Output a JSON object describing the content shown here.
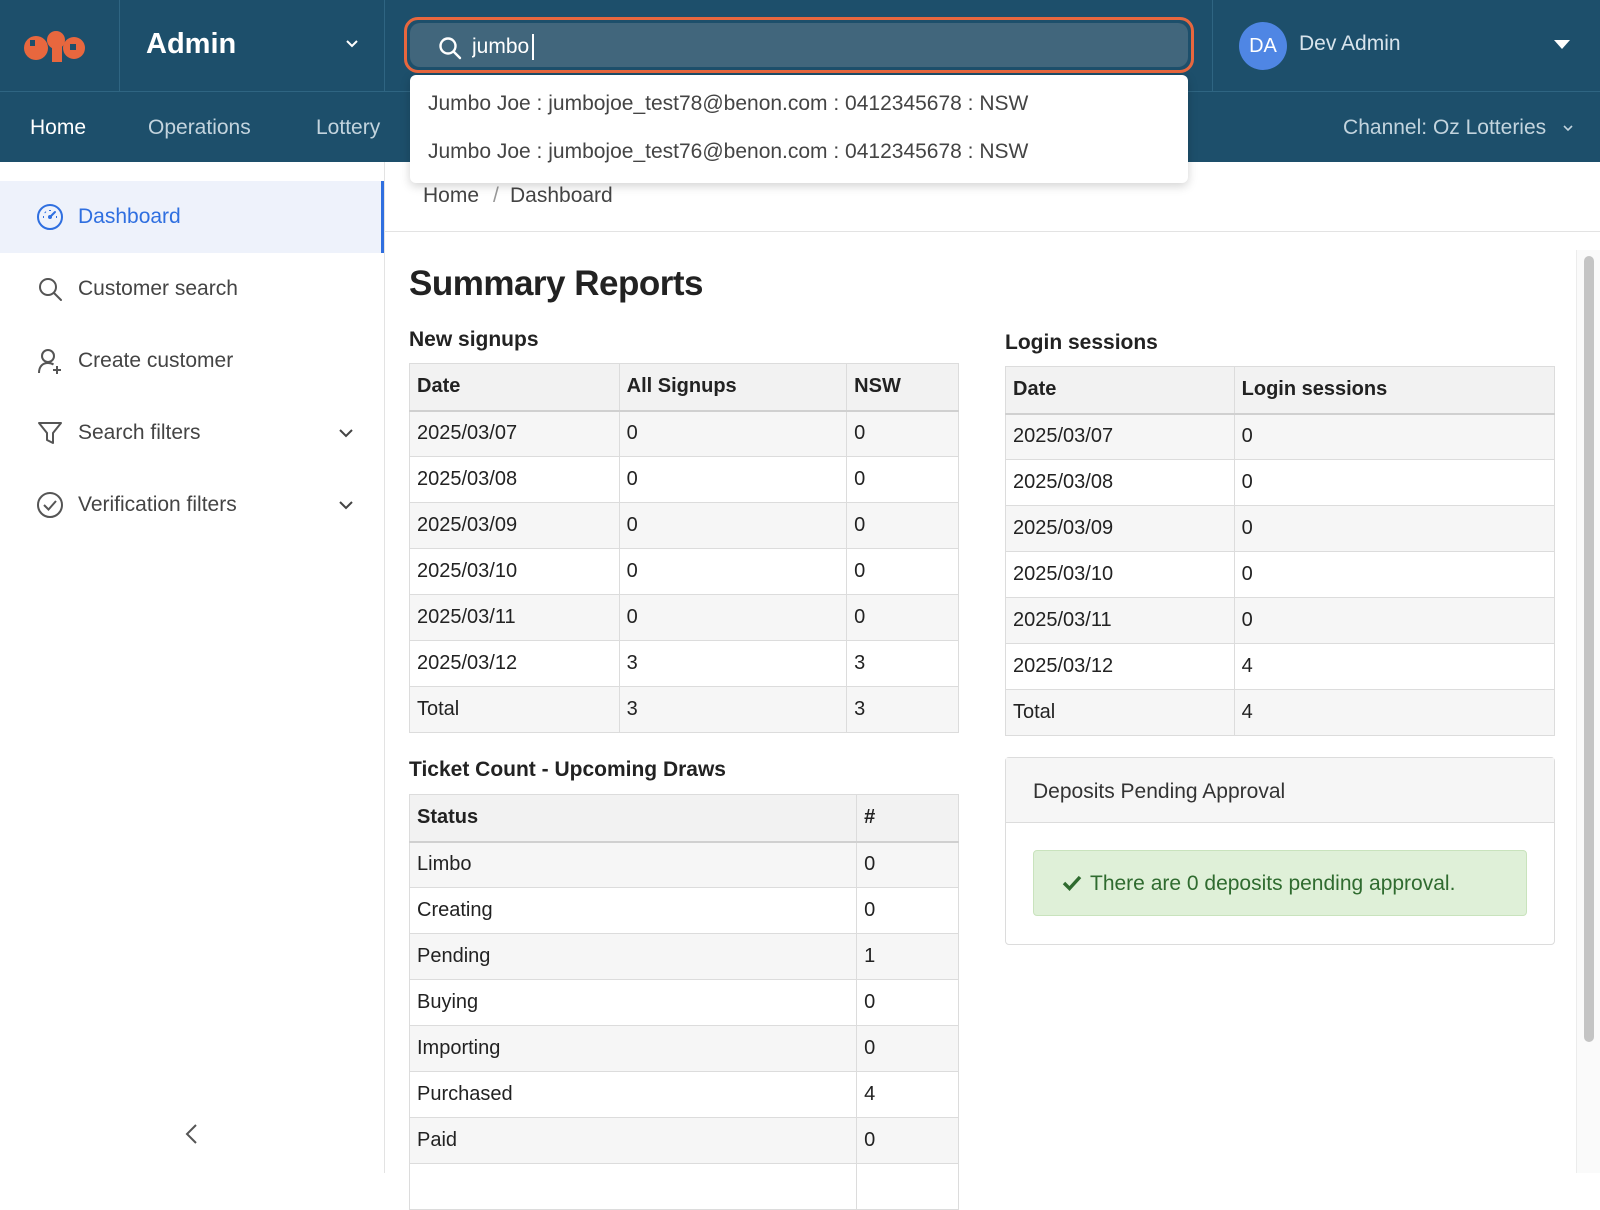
{
  "header": {
    "app_title": "Admin",
    "search": {
      "value": "jumbo",
      "placeholder": ""
    },
    "user": {
      "initials": "DA",
      "name": "Dev Admin",
      "avatar_color": "#4f86e4"
    },
    "brand_color": "#1d4f6b",
    "accent_color": "#e8673e"
  },
  "search_results": [
    "Jumbo Joe : jumbojoe_test78@benon.com : 0412345678 : NSW",
    "Jumbo Joe : jumbojoe_test76@benon.com : 0412345678 : NSW"
  ],
  "nav": {
    "items": [
      {
        "label": "Home",
        "active": true
      },
      {
        "label": "Operations",
        "active": false
      },
      {
        "label": "Lottery",
        "active": false
      }
    ],
    "channel": "Channel: Oz Lotteries"
  },
  "sidebar": {
    "items": [
      {
        "label": "Dashboard",
        "icon": "dashboard-icon",
        "active": true
      },
      {
        "label": "Customer search",
        "icon": "search-icon"
      },
      {
        "label": "Create customer",
        "icon": "add-user-icon"
      },
      {
        "label": "Search filters",
        "icon": "filter-icon",
        "expandable": true
      },
      {
        "label": "Verification filters",
        "icon": "check-circle-icon",
        "expandable": true
      }
    ],
    "active_color": "#2f6fe0"
  },
  "breadcrumb": {
    "home": "Home",
    "sep": "/",
    "current": "Dashboard"
  },
  "main": {
    "title": "Summary Reports",
    "new_signups": {
      "title": "New signups",
      "headers": [
        "Date",
        "All Signups",
        "NSW"
      ],
      "rows": [
        [
          "2025/03/07",
          "0",
          "0"
        ],
        [
          "2025/03/08",
          "0",
          "0"
        ],
        [
          "2025/03/09",
          "0",
          "0"
        ],
        [
          "2025/03/10",
          "0",
          "0"
        ],
        [
          "2025/03/11",
          "0",
          "0"
        ],
        [
          "2025/03/12",
          "3",
          "3"
        ],
        [
          "Total",
          "3",
          "3"
        ]
      ]
    },
    "login_sessions": {
      "title": "Login sessions",
      "headers": [
        "Date",
        "Login sessions"
      ],
      "rows": [
        [
          "2025/03/07",
          "0"
        ],
        [
          "2025/03/08",
          "0"
        ],
        [
          "2025/03/09",
          "0"
        ],
        [
          "2025/03/10",
          "0"
        ],
        [
          "2025/03/11",
          "0"
        ],
        [
          "2025/03/12",
          "4"
        ],
        [
          "Total",
          "4"
        ]
      ]
    },
    "ticket_count": {
      "title": "Ticket Count - Upcoming Draws",
      "headers": [
        "Status",
        "#"
      ],
      "rows": [
        [
          "Limbo",
          "0"
        ],
        [
          "Creating",
          "0"
        ],
        [
          "Pending",
          "1"
        ],
        [
          "Buying",
          "0"
        ],
        [
          "Importing",
          "0"
        ],
        [
          "Purchased",
          "4"
        ],
        [
          "Paid",
          "0"
        ],
        [
          "",
          ""
        ]
      ]
    },
    "deposits": {
      "title": "Deposits Pending Approval",
      "message": "There are 0 deposits pending approval.",
      "success_color": "#dff0d8"
    }
  }
}
